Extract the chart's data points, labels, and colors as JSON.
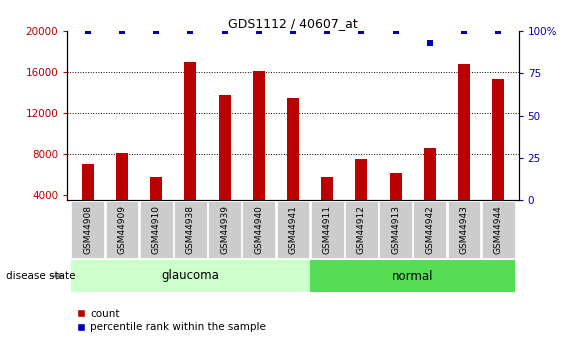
{
  "title": "GDS1112 / 40607_at",
  "samples": [
    "GSM44908",
    "GSM44909",
    "GSM44910",
    "GSM44938",
    "GSM44939",
    "GSM44940",
    "GSM44941",
    "GSM44911",
    "GSM44912",
    "GSM44913",
    "GSM44942",
    "GSM44943",
    "GSM44944"
  ],
  "counts": [
    7000,
    8100,
    5800,
    17000,
    13800,
    16100,
    13500,
    5800,
    7500,
    6100,
    8600,
    16800,
    15300
  ],
  "percentile_ranks": [
    100,
    100,
    100,
    100,
    100,
    100,
    100,
    100,
    100,
    100,
    93,
    100,
    100
  ],
  "glaucoma_indices": [
    0,
    1,
    2,
    3,
    4,
    5,
    6
  ],
  "normal_indices": [
    7,
    8,
    9,
    10,
    11,
    12
  ],
  "bar_color": "#bb0000",
  "percentile_color": "#0000bb",
  "ylim_left": [
    3500,
    20000
  ],
  "yticks_left": [
    4000,
    8000,
    12000,
    16000,
    20000
  ],
  "ylim_right": [
    0,
    100
  ],
  "yticks_right": [
    0,
    25,
    50,
    75,
    100
  ],
  "glaucoma_color": "#ccffcc",
  "normal_color": "#55dd55",
  "label_bg_color": "#cccccc",
  "background_color": "#ffffff",
  "legend_count_label": "count",
  "legend_pct_label": "percentile rank within the sample",
  "disease_state_label": "disease state",
  "glaucoma_label": "glaucoma",
  "normal_label": "normal"
}
